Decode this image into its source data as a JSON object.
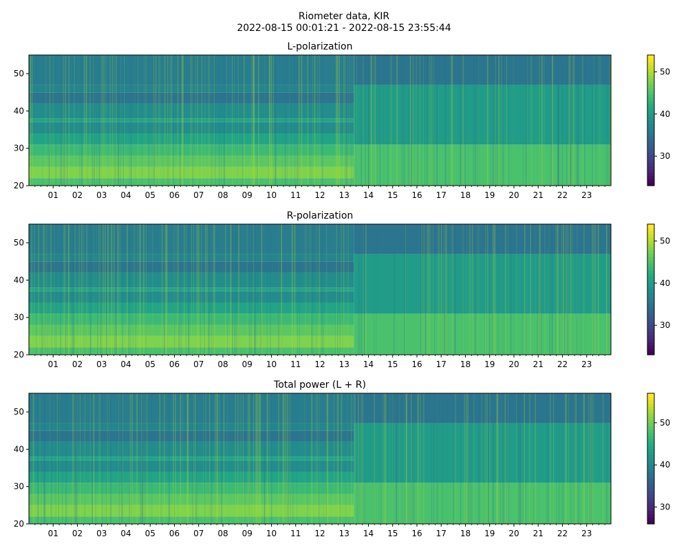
{
  "figure": {
    "title_line1": "Riometer data, KIR",
    "title_line2": "2022-08-15 00:01:21 - 2022-08-15 23:55:44"
  },
  "colormap": "viridis",
  "colors": {
    "viridis_low": "#440154",
    "viridis_mid": "#21918c",
    "viridis_high": "#fde725"
  },
  "chart_data": [
    {
      "type": "heatmap",
      "title": "L-polarization",
      "xlim": [
        0,
        24
      ],
      "ylim": [
        20,
        55
      ],
      "x_ticks": [
        "01",
        "02",
        "03",
        "04",
        "05",
        "06",
        "07",
        "08",
        "09",
        "10",
        "11",
        "12",
        "13",
        "14",
        "15",
        "16",
        "17",
        "18",
        "19",
        "20",
        "21",
        "22",
        "23"
      ],
      "y_ticks": [
        20,
        30,
        40,
        50
      ],
      "colorbar": {
        "min": 23,
        "max": 54,
        "ticks": [
          30,
          40,
          50
        ]
      },
      "bands": [
        {
          "from_hour": 0.0,
          "to_hour": 13.4,
          "y_bands": [
            [
              20,
              22,
              45
            ],
            [
              22,
              25,
              48
            ],
            [
              25,
              28,
              46
            ],
            [
              28,
              31,
              44
            ],
            [
              31,
              34,
              41
            ],
            [
              34,
              37,
              38
            ],
            [
              37,
              38,
              41
            ],
            [
              38,
              42,
              38
            ],
            [
              42,
              45,
              35
            ],
            [
              45,
              47,
              37
            ],
            [
              47,
              55,
              36
            ]
          ]
        },
        {
          "from_hour": 13.4,
          "to_hour": 24.0,
          "y_bands": [
            [
              20,
              31,
              45
            ],
            [
              31,
              47,
              40
            ],
            [
              47,
              55,
              35
            ]
          ]
        }
      ]
    },
    {
      "type": "heatmap",
      "title": "R-polarization",
      "xlim": [
        0,
        24
      ],
      "ylim": [
        20,
        55
      ],
      "x_ticks": [
        "01",
        "02",
        "03",
        "04",
        "05",
        "06",
        "07",
        "08",
        "09",
        "10",
        "11",
        "12",
        "13",
        "14",
        "15",
        "16",
        "17",
        "18",
        "19",
        "20",
        "21",
        "22",
        "23"
      ],
      "y_ticks": [
        20,
        30,
        40,
        50
      ],
      "colorbar": {
        "min": 23,
        "max": 54,
        "ticks": [
          30,
          40,
          50
        ]
      },
      "bands": [
        {
          "from_hour": 0.0,
          "to_hour": 13.4,
          "y_bands": [
            [
              20,
              22,
              45
            ],
            [
              22,
              25,
              48
            ],
            [
              25,
              28,
              46
            ],
            [
              28,
              31,
              44
            ],
            [
              31,
              34,
              41
            ],
            [
              34,
              37,
              38
            ],
            [
              37,
              38,
              41
            ],
            [
              38,
              42,
              38
            ],
            [
              42,
              45,
              35
            ],
            [
              45,
              47,
              37
            ],
            [
              47,
              55,
              36
            ]
          ]
        },
        {
          "from_hour": 13.4,
          "to_hour": 24.0,
          "y_bands": [
            [
              20,
              31,
              45
            ],
            [
              31,
              47,
              40
            ],
            [
              47,
              55,
              35
            ]
          ]
        }
      ]
    },
    {
      "type": "heatmap",
      "title": "Total power (L + R)",
      "xlim": [
        0,
        24
      ],
      "ylim": [
        20,
        55
      ],
      "x_ticks": [
        "01",
        "02",
        "03",
        "04",
        "05",
        "06",
        "07",
        "08",
        "09",
        "10",
        "11",
        "12",
        "13",
        "14",
        "15",
        "16",
        "17",
        "18",
        "19",
        "20",
        "21",
        "22",
        "23"
      ],
      "y_ticks": [
        20,
        30,
        40,
        50
      ],
      "colorbar": {
        "min": 26,
        "max": 57,
        "ticks": [
          30,
          40,
          50
        ]
      },
      "bands": [
        {
          "from_hour": 0.0,
          "to_hour": 13.4,
          "y_bands": [
            [
              20,
              22,
              48
            ],
            [
              22,
              25,
              51
            ],
            [
              25,
              28,
              49
            ],
            [
              28,
              31,
              47
            ],
            [
              31,
              34,
              44
            ],
            [
              34,
              37,
              41
            ],
            [
              37,
              38,
              44
            ],
            [
              38,
              42,
              41
            ],
            [
              42,
              45,
              38
            ],
            [
              45,
              47,
              40
            ],
            [
              47,
              55,
              39
            ]
          ]
        },
        {
          "from_hour": 13.4,
          "to_hour": 24.0,
          "y_bands": [
            [
              20,
              31,
              48
            ],
            [
              31,
              47,
              43
            ],
            [
              47,
              55,
              38
            ]
          ]
        }
      ]
    }
  ]
}
